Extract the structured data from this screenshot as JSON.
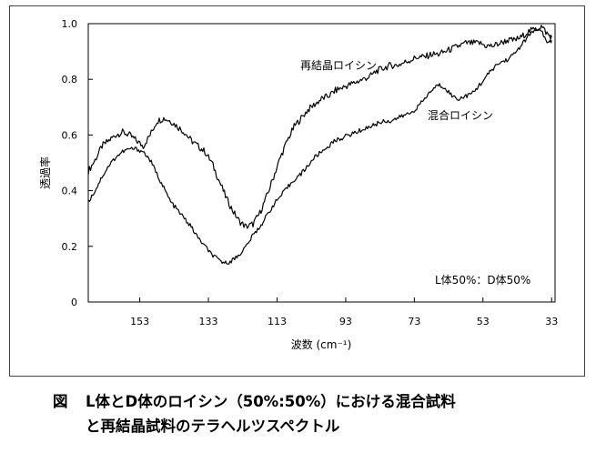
{
  "chart_data": {
    "type": "line",
    "xlabel": "波数 (cm⁻¹)",
    "ylabel": "透過率",
    "xlim": [
      168,
      32
    ],
    "ylim": [
      0,
      1.0
    ],
    "x_axis_reversed": true,
    "x_ticks": [
      153,
      133,
      113,
      93,
      73,
      53,
      33
    ],
    "y_ticks": [
      0,
      0.2,
      0.4,
      0.6,
      0.8,
      1.0
    ],
    "y_tick_labels": [
      "0",
      "0.2",
      "0.4",
      "0.6",
      "0.8",
      "1.0"
    ],
    "annotation": "L体50%：D体50%",
    "grid": false,
    "series": [
      {
        "name": "再結晶ロイシン",
        "color": "#000000",
        "points": [
          [
            168,
            0.47
          ],
          [
            166,
            0.51
          ],
          [
            164,
            0.56
          ],
          [
            162,
            0.58
          ],
          [
            160,
            0.6
          ],
          [
            158,
            0.61
          ],
          [
            156,
            0.6
          ],
          [
            154,
            0.58
          ],
          [
            152,
            0.56
          ],
          [
            150,
            0.6
          ],
          [
            148,
            0.65
          ],
          [
            146,
            0.66
          ],
          [
            144,
            0.65
          ],
          [
            142,
            0.63
          ],
          [
            140,
            0.61
          ],
          [
            138,
            0.58
          ],
          [
            136,
            0.56
          ],
          [
            134,
            0.54
          ],
          [
            132,
            0.5
          ],
          [
            130,
            0.44
          ],
          [
            128,
            0.38
          ],
          [
            126,
            0.33
          ],
          [
            124,
            0.29
          ],
          [
            122,
            0.27
          ],
          [
            120,
            0.28
          ],
          [
            118,
            0.32
          ],
          [
            116,
            0.38
          ],
          [
            114,
            0.45
          ],
          [
            112,
            0.52
          ],
          [
            110,
            0.58
          ],
          [
            108,
            0.63
          ],
          [
            106,
            0.66
          ],
          [
            104,
            0.69
          ],
          [
            102,
            0.71
          ],
          [
            100,
            0.73
          ],
          [
            98,
            0.74
          ],
          [
            96,
            0.76
          ],
          [
            94,
            0.77
          ],
          [
            92,
            0.78
          ],
          [
            90,
            0.79
          ],
          [
            88,
            0.8
          ],
          [
            86,
            0.81
          ],
          [
            84,
            0.83
          ],
          [
            82,
            0.84
          ],
          [
            80,
            0.85
          ],
          [
            78,
            0.85
          ],
          [
            76,
            0.86
          ],
          [
            74,
            0.87
          ],
          [
            72,
            0.88
          ],
          [
            70,
            0.88
          ],
          [
            68,
            0.89
          ],
          [
            66,
            0.89
          ],
          [
            64,
            0.9
          ],
          [
            62,
            0.91
          ],
          [
            60,
            0.92
          ],
          [
            58,
            0.93
          ],
          [
            56,
            0.93
          ],
          [
            54,
            0.93
          ],
          [
            52,
            0.92
          ],
          [
            50,
            0.92
          ],
          [
            48,
            0.93
          ],
          [
            46,
            0.94
          ],
          [
            44,
            0.94
          ],
          [
            42,
            0.95
          ],
          [
            40,
            0.97
          ],
          [
            38,
            0.98
          ],
          [
            36,
            0.99
          ],
          [
            34,
            0.96
          ],
          [
            33,
            0.95
          ]
        ]
      },
      {
        "name": "混合ロイシン",
        "color": "#000000",
        "points": [
          [
            168,
            0.36
          ],
          [
            166,
            0.4
          ],
          [
            164,
            0.45
          ],
          [
            162,
            0.49
          ],
          [
            160,
            0.52
          ],
          [
            158,
            0.54
          ],
          [
            156,
            0.55
          ],
          [
            154,
            0.55
          ],
          [
            152,
            0.54
          ],
          [
            150,
            0.51
          ],
          [
            148,
            0.46
          ],
          [
            146,
            0.41
          ],
          [
            144,
            0.36
          ],
          [
            142,
            0.33
          ],
          [
            140,
            0.3
          ],
          [
            138,
            0.27
          ],
          [
            136,
            0.23
          ],
          [
            134,
            0.2
          ],
          [
            132,
            0.17
          ],
          [
            130,
            0.15
          ],
          [
            128,
            0.14
          ],
          [
            126,
            0.15
          ],
          [
            124,
            0.17
          ],
          [
            122,
            0.2
          ],
          [
            120,
            0.24
          ],
          [
            118,
            0.27
          ],
          [
            116,
            0.31
          ],
          [
            114,
            0.35
          ],
          [
            112,
            0.38
          ],
          [
            110,
            0.41
          ],
          [
            108,
            0.44
          ],
          [
            106,
            0.46
          ],
          [
            104,
            0.49
          ],
          [
            102,
            0.52
          ],
          [
            100,
            0.54
          ],
          [
            98,
            0.56
          ],
          [
            96,
            0.58
          ],
          [
            94,
            0.59
          ],
          [
            92,
            0.6
          ],
          [
            90,
            0.61
          ],
          [
            88,
            0.62
          ],
          [
            86,
            0.63
          ],
          [
            84,
            0.64
          ],
          [
            82,
            0.65
          ],
          [
            80,
            0.65
          ],
          [
            78,
            0.66
          ],
          [
            76,
            0.67
          ],
          [
            74,
            0.68
          ],
          [
            72,
            0.7
          ],
          [
            70,
            0.73
          ],
          [
            68,
            0.76
          ],
          [
            66,
            0.78
          ],
          [
            64,
            0.77
          ],
          [
            62,
            0.74
          ],
          [
            60,
            0.73
          ],
          [
            58,
            0.74
          ],
          [
            56,
            0.75
          ],
          [
            54,
            0.78
          ],
          [
            52,
            0.81
          ],
          [
            50,
            0.84
          ],
          [
            48,
            0.86
          ],
          [
            46,
            0.87
          ],
          [
            44,
            0.89
          ],
          [
            42,
            0.92
          ],
          [
            40,
            0.95
          ],
          [
            38,
            0.98
          ],
          [
            36,
            0.97
          ],
          [
            34,
            0.93
          ],
          [
            33,
            0.94
          ]
        ]
      }
    ]
  },
  "caption": {
    "prefix": "図",
    "line1": "L体とD体のロイシン（50%:50%）における混合試料",
    "line2": "と再結晶試料のテラヘルツスペクトル"
  }
}
